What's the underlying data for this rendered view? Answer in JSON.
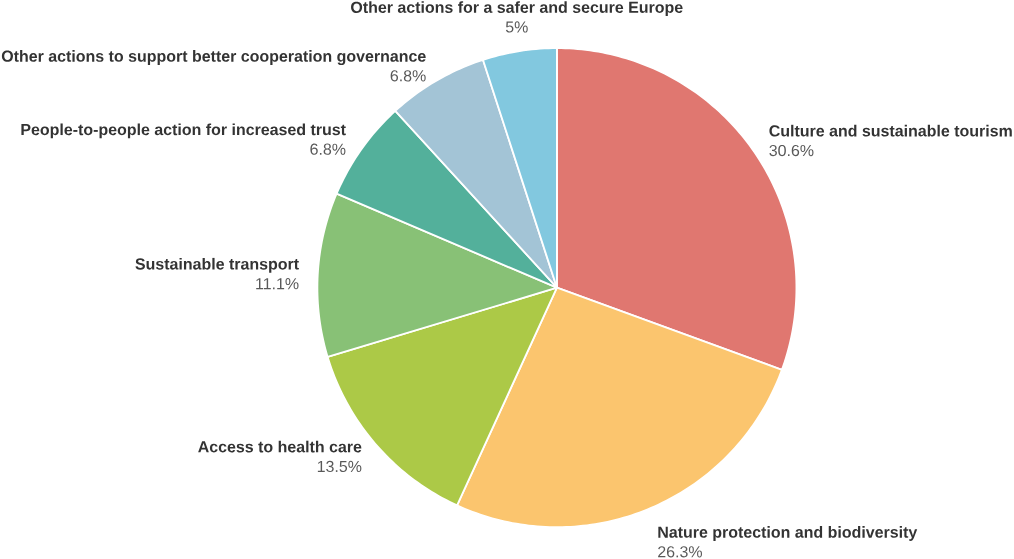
{
  "chart_data": {
    "type": "pie",
    "categories": [
      "Culture and sustainable tourism",
      "Nature protection and biodiversity",
      "Access to health care",
      "Sustainable transport",
      "People-to-people action for increased trust",
      "Other actions to support better cooperation governance",
      "Other actions for a safer and secure Europe"
    ],
    "values": [
      30.6,
      26.3,
      13.5,
      11.1,
      6.8,
      6.8,
      5
    ],
    "value_labels": [
      "30.6%",
      "26.3%",
      "13.5%",
      "11.1%",
      "6.8%",
      "6.8%",
      "5%"
    ],
    "colors": [
      "#e07770",
      "#fbc56e",
      "#acc947",
      "#88c176",
      "#53b09b",
      "#a3c4d6",
      "#82c8df"
    ]
  }
}
